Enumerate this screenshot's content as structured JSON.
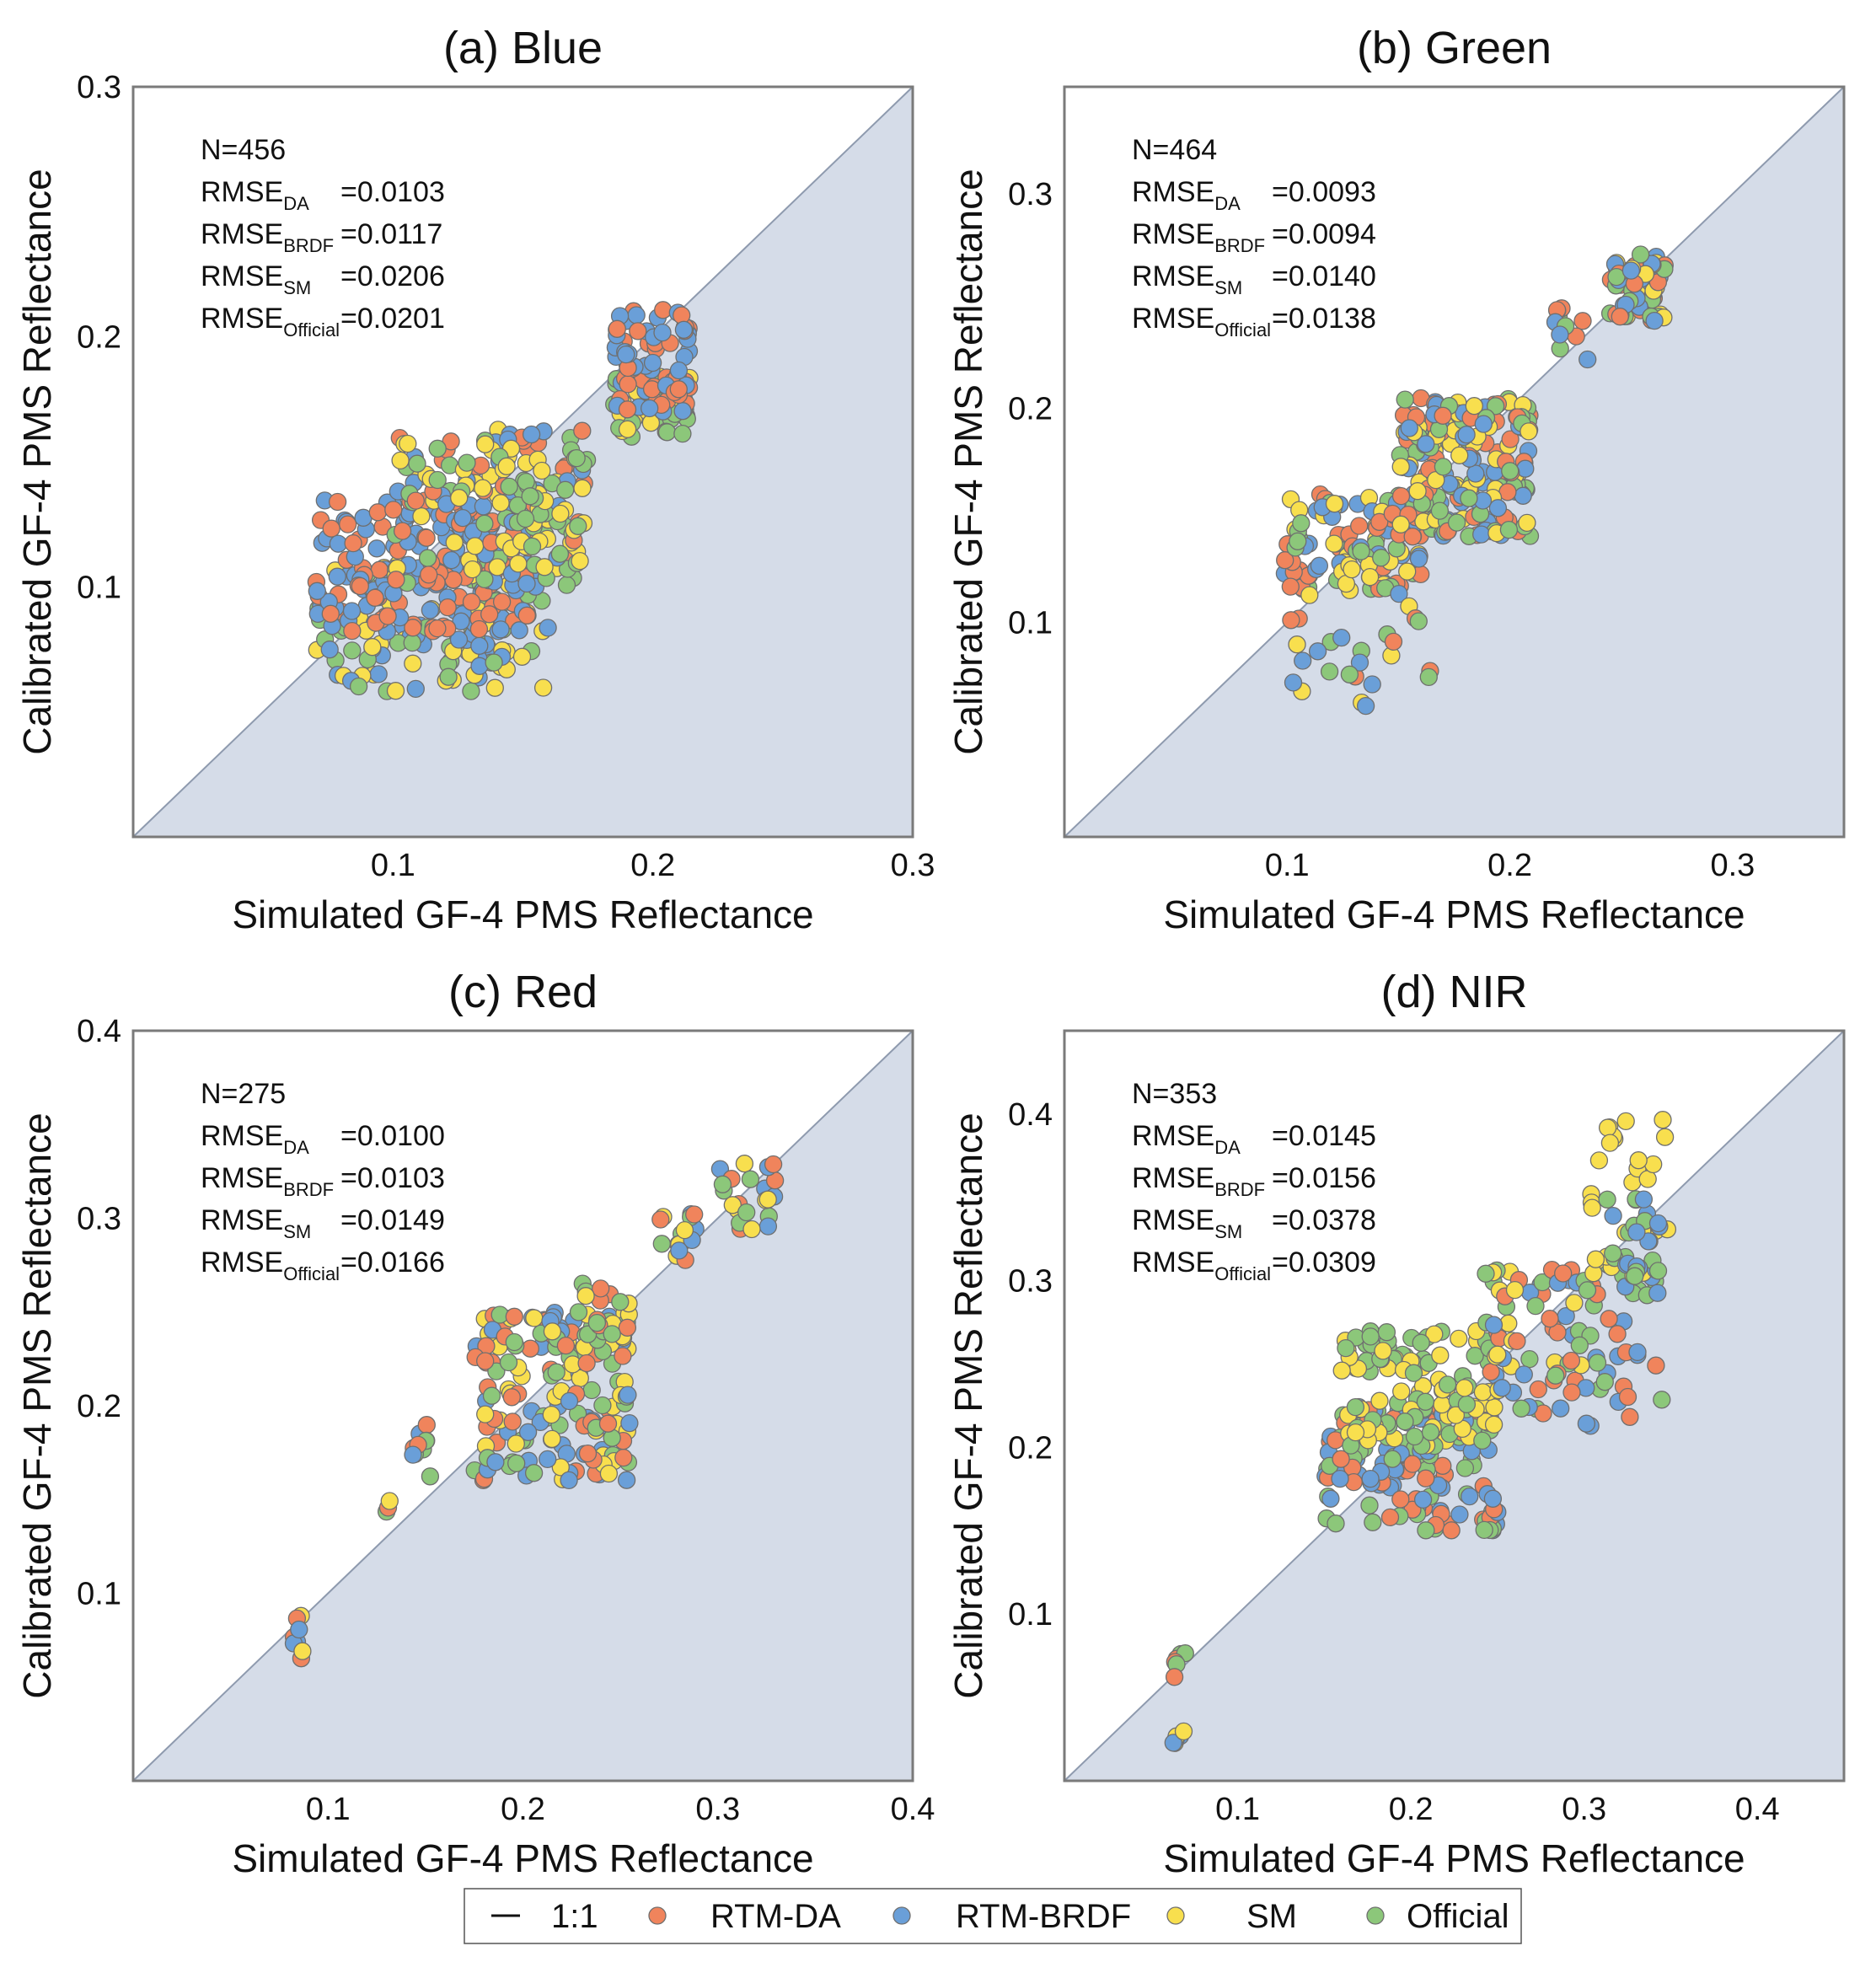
{
  "colors": {
    "rtm_da": "#F0845C",
    "rtm_brdf": "#6A9FD8",
    "sm": "#F8DF4E",
    "official": "#8CC77A",
    "shade": "#D5DCE8",
    "one_to_one": "#8E9AAE",
    "frame": "#7a7a7a"
  },
  "legend": {
    "placement": "bottom-center",
    "entries": [
      {
        "name": "1:1",
        "kind": "line"
      },
      {
        "name": "RTM-DA",
        "kind": "marker",
        "color_key": "rtm_da"
      },
      {
        "name": "RTM-BRDF",
        "kind": "marker",
        "color_key": "rtm_brdf"
      },
      {
        "name": "SM",
        "kind": "marker",
        "color_key": "sm"
      },
      {
        "name": "Official",
        "kind": "marker",
        "color_key": "official"
      }
    ]
  },
  "chart_data": [
    {
      "type": "scatter",
      "title": "(a) Blue",
      "xlabel": "Simulated GF-4 PMS Reflectance",
      "ylabel": "Calibrated GF-4 PMS Reflectance",
      "xlim": [
        0.0,
        0.3
      ],
      "ylim": [
        0.0,
        0.3
      ],
      "xticks": [
        {
          "v": 0.1,
          "label": "0.1"
        },
        {
          "v": 0.2,
          "label": "0.2"
        },
        {
          "v": 0.3,
          "label": "0.3"
        }
      ],
      "yticks": [
        {
          "v": 0.1,
          "label": "0.1"
        },
        {
          "v": 0.2,
          "label": "0.2"
        },
        {
          "v": 0.3,
          "label": "0.3"
        }
      ],
      "stats": [
        {
          "base": "N=456",
          "sub": "",
          "value": ""
        },
        {
          "base": "RMSE",
          "sub": "DA",
          "value": "=0.0103"
        },
        {
          "base": "RMSE",
          "sub": "BRDF",
          "value": "=0.0117"
        },
        {
          "base": "RMSE",
          "sub": "SM",
          "value": "=0.0206"
        },
        {
          "base": "RMSE",
          "sub": "Official",
          "value": "=0.0201"
        }
      ],
      "clusters": [
        {
          "x": [
            0.07,
            0.16
          ],
          "y": [
            0.058,
            0.11
          ],
          "series": [
            "sm",
            "official",
            "rtm_brdf"
          ],
          "n": 140
        },
        {
          "x": [
            0.07,
            0.155
          ],
          "y": [
            0.082,
            0.135
          ],
          "series": [
            "rtm_da",
            "rtm_brdf"
          ],
          "n": 170
        },
        {
          "x": [
            0.1,
            0.175
          ],
          "y": [
            0.1,
            0.165
          ],
          "series": [
            "rtm_da",
            "rtm_brdf",
            "sm",
            "official"
          ],
          "n": 150
        },
        {
          "x": [
            0.125,
            0.175
          ],
          "y": [
            0.105,
            0.16
          ],
          "series": [
            "sm",
            "official"
          ],
          "n": 45
        },
        {
          "x": [
            0.185,
            0.215
          ],
          "y": [
            0.16,
            0.185
          ],
          "series": [
            "official",
            "sm"
          ],
          "n": 45
        },
        {
          "x": [
            0.185,
            0.215
          ],
          "y": [
            0.17,
            0.212
          ],
          "series": [
            "rtm_da",
            "rtm_brdf"
          ],
          "n": 75
        }
      ]
    },
    {
      "type": "scatter",
      "title": "(b) Green",
      "xlabel": "Simulated GF-4 PMS Reflectance",
      "ylabel": "Calibrated GF-4 PMS Reflectance",
      "xlim": [
        0.0,
        0.35
      ],
      "ylim": [
        0.0,
        0.35
      ],
      "xticks": [
        {
          "v": 0.1,
          "label": "0.1"
        },
        {
          "v": 0.2,
          "label": "0.2"
        },
        {
          "v": 0.3,
          "label": "0.3"
        }
      ],
      "yticks": [
        {
          "v": 0.1,
          "label": "0.1"
        },
        {
          "v": 0.2,
          "label": "0.2"
        },
        {
          "v": 0.3,
          "label": "0.3"
        }
      ],
      "stats": [
        {
          "base": "N=464",
          "sub": "",
          "value": ""
        },
        {
          "base": "RMSE",
          "sub": "DA",
          "value": "=0.0093"
        },
        {
          "base": "RMSE",
          "sub": "BRDF",
          "value": "=0.0094"
        },
        {
          "base": "RMSE",
          "sub": "SM",
          "value": "=0.0140"
        },
        {
          "base": "RMSE",
          "sub": "Official",
          "value": "=0.0138"
        }
      ],
      "clusters": [
        {
          "x": [
            0.098,
            0.16
          ],
          "y": [
            0.115,
            0.16
          ],
          "series": [
            "rtm_da",
            "official",
            "rtm_brdf",
            "sm"
          ],
          "n": 110
        },
        {
          "x": [
            0.15,
            0.21
          ],
          "y": [
            0.14,
            0.205
          ],
          "series": [
            "rtm_da",
            "rtm_brdf",
            "official",
            "sm"
          ],
          "n": 200
        },
        {
          "x": [
            0.1,
            0.165
          ],
          "y": [
            0.06,
            0.125
          ],
          "series": [
            "rtm_brdf",
            "sm",
            "rtm_da",
            "official"
          ],
          "n": 30
        },
        {
          "x": [
            0.22,
            0.235
          ],
          "y": [
            0.22,
            0.25
          ],
          "series": [
            "rtm_da",
            "official",
            "rtm_brdf"
          ],
          "n": 12
        },
        {
          "x": [
            0.245,
            0.27
          ],
          "y": [
            0.24,
            0.272
          ],
          "series": [
            "official",
            "sm",
            "rtm_da",
            "rtm_brdf"
          ],
          "n": 60
        }
      ]
    },
    {
      "type": "scatter",
      "title": "(c) Red",
      "xlabel": "Simulated GF-4 PMS Reflectance",
      "ylabel": "Calibrated GF-4 PMS Reflectance",
      "xlim": [
        0.0,
        0.4
      ],
      "ylim": [
        0.0,
        0.4
      ],
      "xticks": [
        {
          "v": 0.1,
          "label": "0.1"
        },
        {
          "v": 0.2,
          "label": "0.2"
        },
        {
          "v": 0.3,
          "label": "0.3"
        },
        {
          "v": 0.4,
          "label": "0.4"
        }
      ],
      "yticks": [
        {
          "v": 0.1,
          "label": "0.1"
        },
        {
          "v": 0.2,
          "label": "0.2"
        },
        {
          "v": 0.3,
          "label": "0.3"
        },
        {
          "v": 0.4,
          "label": "0.4"
        }
      ],
      "stats": [
        {
          "base": "N=275",
          "sub": "",
          "value": ""
        },
        {
          "base": "RMSE",
          "sub": "DA",
          "value": "=0.0100"
        },
        {
          "base": "RMSE",
          "sub": "BRDF",
          "value": "=0.0103"
        },
        {
          "base": "RMSE",
          "sub": "SM",
          "value": "=0.0149"
        },
        {
          "base": "RMSE",
          "sub": "Official",
          "value": "=0.0166"
        }
      ],
      "clusters": [
        {
          "x": [
            0.082,
            0.09
          ],
          "y": [
            0.065,
            0.088
          ],
          "series": [
            "rtm_da",
            "rtm_brdf",
            "sm"
          ],
          "n": 8
        },
        {
          "x": [
            0.13,
            0.132
          ],
          "y": [
            0.138,
            0.15
          ],
          "series": [
            "official",
            "rtm_da",
            "sm"
          ],
          "n": 3
        },
        {
          "x": [
            0.143,
            0.153
          ],
          "y": [
            0.155,
            0.19
          ],
          "series": [
            "official",
            "rtm_da",
            "rtm_brdf"
          ],
          "n": 10
        },
        {
          "x": [
            0.175,
            0.255
          ],
          "y": [
            0.16,
            0.25
          ],
          "series": [
            "rtm_da",
            "rtm_brdf",
            "official",
            "sm"
          ],
          "n": 170
        },
        {
          "x": [
            0.23,
            0.255
          ],
          "y": [
            0.235,
            0.27
          ],
          "series": [
            "official",
            "sm",
            "rtm_da"
          ],
          "n": 25
        },
        {
          "x": [
            0.27,
            0.29
          ],
          "y": [
            0.275,
            0.305
          ],
          "series": [
            "rtm_da",
            "official",
            "sm",
            "rtm_brdf"
          ],
          "n": 18
        },
        {
          "x": [
            0.3,
            0.33
          ],
          "y": [
            0.29,
            0.33
          ],
          "series": [
            "sm",
            "official",
            "rtm_da",
            "rtm_brdf"
          ],
          "n": 22
        }
      ]
    },
    {
      "type": "scatter",
      "title": "(d) NIR",
      "xlabel": "Simulated GF-4 PMS Reflectance",
      "ylabel": "Calibrated GF-4 PMS Reflectance",
      "xlim": [
        0.0,
        0.45
      ],
      "ylim": [
        0.0,
        0.45
      ],
      "xticks": [
        {
          "v": 0.1,
          "label": "0.1"
        },
        {
          "v": 0.2,
          "label": "0.2"
        },
        {
          "v": 0.3,
          "label": "0.3"
        },
        {
          "v": 0.4,
          "label": "0.4"
        }
      ],
      "yticks": [
        {
          "v": 0.1,
          "label": "0.1"
        },
        {
          "v": 0.2,
          "label": "0.2"
        },
        {
          "v": 0.3,
          "label": "0.3"
        },
        {
          "v": 0.4,
          "label": "0.4"
        }
      ],
      "stats": [
        {
          "base": "N=353",
          "sub": "",
          "value": ""
        },
        {
          "base": "RMSE",
          "sub": "DA",
          "value": "=0.0145"
        },
        {
          "base": "RMSE",
          "sub": "BRDF",
          "value": "=0.0156"
        },
        {
          "base": "RMSE",
          "sub": "SM",
          "value": "=0.0378"
        },
        {
          "base": "RMSE",
          "sub": "Official",
          "value": "=0.0309"
        }
      ],
      "clusters": [
        {
          "x": [
            0.063,
            0.07
          ],
          "y": [
            0.06,
            0.078
          ],
          "series": [
            "official",
            "rtm_da"
          ],
          "n": 6
        },
        {
          "x": [
            0.06,
            0.07
          ],
          "y": [
            0.02,
            0.03
          ],
          "series": [
            "rtm_brdf",
            "sm"
          ],
          "n": 6
        },
        {
          "x": [
            0.15,
            0.25
          ],
          "y": [
            0.15,
            0.225
          ],
          "series": [
            "rtm_da",
            "rtm_brdf",
            "official"
          ],
          "n": 140
        },
        {
          "x": [
            0.16,
            0.25
          ],
          "y": [
            0.2,
            0.27
          ],
          "series": [
            "sm",
            "official"
          ],
          "n": 110
        },
        {
          "x": [
            0.24,
            0.3
          ],
          "y": [
            0.22,
            0.31
          ],
          "series": [
            "sm",
            "official",
            "rtm_da",
            "rtm_brdf"
          ],
          "n": 50
        },
        {
          "x": [
            0.28,
            0.345
          ],
          "y": [
            0.21,
            0.31
          ],
          "series": [
            "rtm_da",
            "rtm_brdf",
            "official"
          ],
          "n": 50
        },
        {
          "x": [
            0.3,
            0.35
          ],
          "y": [
            0.3,
            0.4
          ],
          "series": [
            "sm"
          ],
          "n": 30
        },
        {
          "x": [
            0.31,
            0.345
          ],
          "y": [
            0.3,
            0.35
          ],
          "series": [
            "official",
            "rtm_brdf"
          ],
          "n": 25
        }
      ]
    }
  ]
}
